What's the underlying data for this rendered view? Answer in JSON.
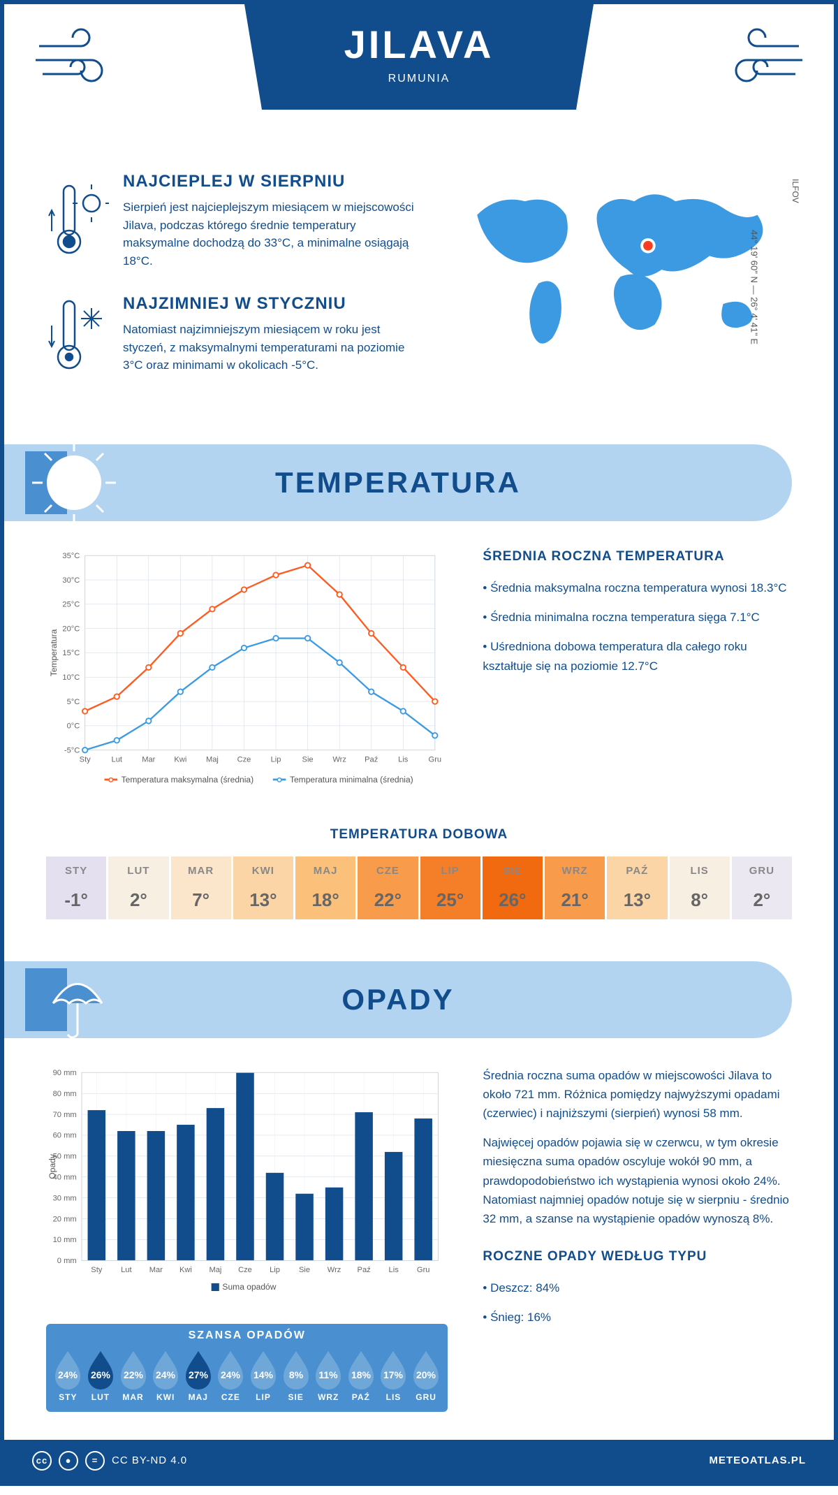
{
  "colors": {
    "primary": "#114d8c",
    "light_blue": "#b3d4f0",
    "mid_blue": "#4a90d0",
    "orange": "#ff5a1f",
    "chart_blue": "#3b9ae1",
    "grid": "#c8d4e0"
  },
  "header": {
    "city": "JILAVA",
    "country": "RUMUNIA"
  },
  "intro": {
    "hottest": {
      "title": "NAJCIEPLEJ W SIERPNIU",
      "text": "Sierpień jest najcieplejszym miesiącem w miejscowości Jilava, podczas którego średnie temperatury maksymalne dochodzą do 33°C, a minimalne osiągają 18°C."
    },
    "coldest": {
      "title": "NAJZIMNIEJ W STYCZNIU",
      "text": "Natomiast najzimniejszym miesiącem w roku jest styczeń, z maksymalnymi temperaturami na poziomie 3°C oraz minimami w okolicach -5°C."
    },
    "coords": "44° 19' 60\" N — 26° 4' 41\" E",
    "region": "ILFOV"
  },
  "months_short": [
    "Sty",
    "Lut",
    "Mar",
    "Kwi",
    "Maj",
    "Cze",
    "Lip",
    "Sie",
    "Wrz",
    "Paź",
    "Lis",
    "Gru"
  ],
  "months_upper": [
    "STY",
    "LUT",
    "MAR",
    "KWI",
    "MAJ",
    "CZE",
    "LIP",
    "SIE",
    "WRZ",
    "PAŹ",
    "LIS",
    "GRU"
  ],
  "temperature": {
    "section_title": "TEMPERATURA",
    "chart": {
      "type": "line",
      "y_label": "Temperatura",
      "y_min": -5,
      "y_max": 35,
      "y_step": 5,
      "series": [
        {
          "name": "Temperatura maksymalna (średnia)",
          "color": "#ff5a1f",
          "values": [
            3,
            6,
            12,
            19,
            24,
            28,
            31,
            33,
            27,
            19,
            12,
            5
          ]
        },
        {
          "name": "Temperatura minimalna (średnia)",
          "color": "#3b9ae1",
          "values": [
            -5,
            -3,
            1,
            7,
            12,
            16,
            18,
            18,
            13,
            7,
            3,
            -2
          ]
        }
      ]
    },
    "info": {
      "title": "ŚREDNIA ROCZNA TEMPERATURA",
      "bullets": [
        "Średnia maksymalna roczna temperatura wynosi 18.3°C",
        "Średnia minimalna roczna temperatura sięga 7.1°C",
        "Uśredniona dobowa temperatura dla całego roku kształtuje się na poziomie 12.7°C"
      ]
    },
    "daily": {
      "title": "TEMPERATURA DOBOWA",
      "values": [
        "-1°",
        "2°",
        "7°",
        "13°",
        "18°",
        "22°",
        "25°",
        "26°",
        "21°",
        "13°",
        "8°",
        "2°"
      ],
      "bg_colors": [
        "#e4e0f0",
        "#f7efe2",
        "#fbe6cc",
        "#fcd5a6",
        "#fbc07a",
        "#f89b4b",
        "#f57e29",
        "#f26a10",
        "#f89b4b",
        "#fcd5a6",
        "#f7efe2",
        "#ece8f2"
      ]
    }
  },
  "precipitation": {
    "section_title": "OPADY",
    "chart": {
      "type": "bar",
      "y_label": "Opady",
      "y_min": 0,
      "y_max": 90,
      "y_step": 10,
      "legend": "Suma opadów",
      "bar_color": "#114d8c",
      "values": [
        72,
        62,
        62,
        65,
        73,
        90,
        42,
        32,
        35,
        71,
        52,
        68
      ]
    },
    "info": {
      "p1": "Średnia roczna suma opadów w miejscowości Jilava to około 721 mm. Różnica pomiędzy najwyższymi opadami (czerwiec) i najniższymi (sierpień) wynosi 58 mm.",
      "p2": "Najwięcej opadów pojawia się w czerwcu, w tym okresie miesięczna suma opadów oscyluje wokół 90 mm, a prawdopodobieństwo ich wystąpienia wynosi około 24%. Natomiast najmniej opadów notuje się w sierpniu - średnio 32 mm, a szanse na wystąpienie opadów wynoszą 8%.",
      "types_title": "ROCZNE OPADY WEDŁUG TYPU",
      "types": [
        "Deszcz: 84%",
        "Śnieg: 16%"
      ]
    },
    "chance": {
      "title": "SZANSA OPADÓW",
      "values": [
        24,
        26,
        22,
        24,
        27,
        24,
        14,
        8,
        11,
        18,
        17,
        20
      ],
      "dark_fill": "#114d8c",
      "light_fill": "#6fa8d8"
    }
  },
  "footer": {
    "license": "CC BY-ND 4.0",
    "site": "METEOATLAS.PL"
  }
}
